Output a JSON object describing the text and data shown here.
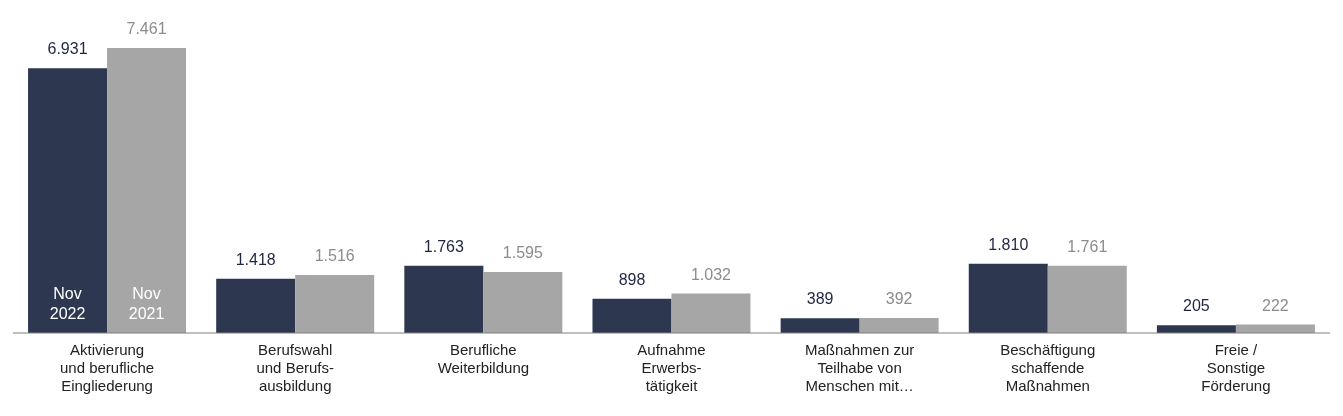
{
  "chart_data": {
    "type": "bar",
    "categories": [
      "Aktivierung\nund berufliche\nEingliederung",
      "Berufswahl\nund Berufs-\nausbildung",
      "Berufliche\nWeiterbildung",
      "Aufnahme\nErwerbs-\ntätigkeit",
      "Maßnahmen zur\nTeilhabe von\nMenschen mit…",
      "Beschäftigung\nschaffende\nMaßnahmen",
      "Freie /\nSonstige\nFörderung"
    ],
    "series": [
      {
        "name": "Nov 2022",
        "color": "#2d3850",
        "values": [
          6931,
          1418,
          1763,
          898,
          389,
          1810,
          205
        ],
        "value_labels": [
          "6.931",
          "1.418",
          "1.763",
          "898",
          "389",
          "1.810",
          "205"
        ]
      },
      {
        "name": "Nov 2021",
        "color": "#a6a6a6",
        "values": [
          7461,
          1516,
          1595,
          1032,
          392,
          1761,
          222
        ],
        "value_labels": [
          "7.461",
          "1.516",
          "1.595",
          "1.032",
          "392",
          "1.761",
          "222"
        ]
      }
    ],
    "legend": false,
    "grid": false
  }
}
